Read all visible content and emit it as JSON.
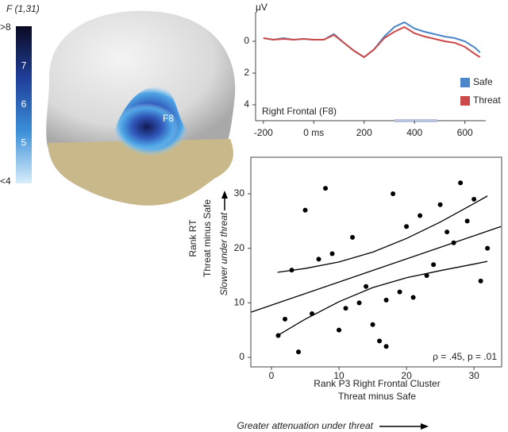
{
  "chart_data": [
    {
      "type": "colorbar",
      "title": "F (1,31)",
      "annotation": "F8",
      "colors": [
        "#d8eefb",
        "#3a8fd8",
        "#1f3f9a",
        "#0a0a22"
      ],
      "ylim": [
        4,
        8
      ],
      "yticks": [
        {
          "value": 8,
          "label": ">8"
        },
        7,
        6,
        5,
        {
          "value": 4,
          "label": "<4"
        }
      ]
    },
    {
      "type": "line",
      "ylabel": "μV",
      "annotation": "Right Frontal (F8)",
      "y_inverted": true,
      "x": [
        -200,
        -160,
        -120,
        -80,
        -40,
        0,
        40,
        80,
        120,
        160,
        200,
        240,
        280,
        320,
        360,
        400,
        440,
        480,
        520,
        560,
        600,
        640,
        660
      ],
      "series": [
        {
          "name": "Safe",
          "color": "#4a86c8",
          "values": [
            -0.2,
            -0.1,
            -0.2,
            -0.1,
            -0.15,
            -0.1,
            -0.1,
            -0.45,
            0.1,
            0.6,
            1.0,
            0.5,
            -0.3,
            -0.9,
            -1.2,
            -0.8,
            -0.6,
            -0.45,
            -0.3,
            -0.2,
            0.0,
            0.4,
            0.7
          ]
        },
        {
          "name": "Threat",
          "color": "#cc4a4a",
          "values": [
            -0.2,
            -0.1,
            -0.15,
            -0.1,
            -0.15,
            -0.1,
            -0.1,
            -0.4,
            0.1,
            0.6,
            1.0,
            0.5,
            -0.2,
            -0.6,
            -0.9,
            -0.5,
            -0.3,
            -0.15,
            0.0,
            0.1,
            0.35,
            0.8,
            1.0
          ]
        }
      ],
      "window": [
        320,
        490
      ],
      "xlim": [
        -231,
        683
      ],
      "xticks": [
        -200,
        {
          "value": 0,
          "label": "0 ms"
        },
        200,
        400,
        600
      ],
      "ylim": [
        -1.85,
        5.0
      ],
      "yticks": [
        0,
        2,
        4
      ],
      "legend": "lower right"
    },
    {
      "type": "scatter",
      "xlabel": [
        "Rank P3 Right Frontal Cluster",
        "Threat minus Safe"
      ],
      "xnote": "Greater attenuation under threat",
      "ylabel": [
        "Rank RT",
        "Threat minus Safe"
      ],
      "ynote": "Slower under threat",
      "annotation": "ρ = .45, p = .01",
      "color": "#000000",
      "x": [
        1,
        2,
        3,
        4,
        5,
        6,
        7,
        8,
        9,
        10,
        11,
        12,
        13,
        14,
        15,
        16,
        17,
        17,
        18,
        19,
        20,
        21,
        22,
        23,
        24,
        25,
        26,
        27,
        28,
        29,
        30,
        31,
        32
      ],
      "values": [
        4,
        7,
        16,
        1,
        27,
        8,
        18,
        31,
        19,
        5,
        9,
        22,
        10,
        13,
        6,
        3,
        2,
        10.5,
        30,
        12,
        24,
        11,
        26,
        15,
        17,
        28,
        23,
        21,
        32,
        25,
        29,
        14,
        20
      ],
      "fit": {
        "x": [
          -3,
          34
        ],
        "y": [
          8.3,
          24.0
        ]
      },
      "band_upper": {
        "x": [
          0.9,
          5,
          10,
          15,
          20,
          25,
          30,
          32
        ],
        "y": [
          15.6,
          16.3,
          17.5,
          19.3,
          21.8,
          24.8,
          28.2,
          29.6
        ]
      },
      "band_lower": {
        "x": [
          0.9,
          5,
          10,
          15,
          20,
          25,
          30,
          32
        ],
        "y": [
          4,
          7,
          10.2,
          12.8,
          14.6,
          15.9,
          17.1,
          17.6
        ]
      },
      "xlim": [
        -3.06,
        34.1
      ],
      "xticks": [
        0,
        10,
        20,
        30
      ],
      "ylim": [
        -1.75,
        36.7
      ],
      "yticks": [
        0,
        10,
        20,
        30
      ]
    }
  ]
}
